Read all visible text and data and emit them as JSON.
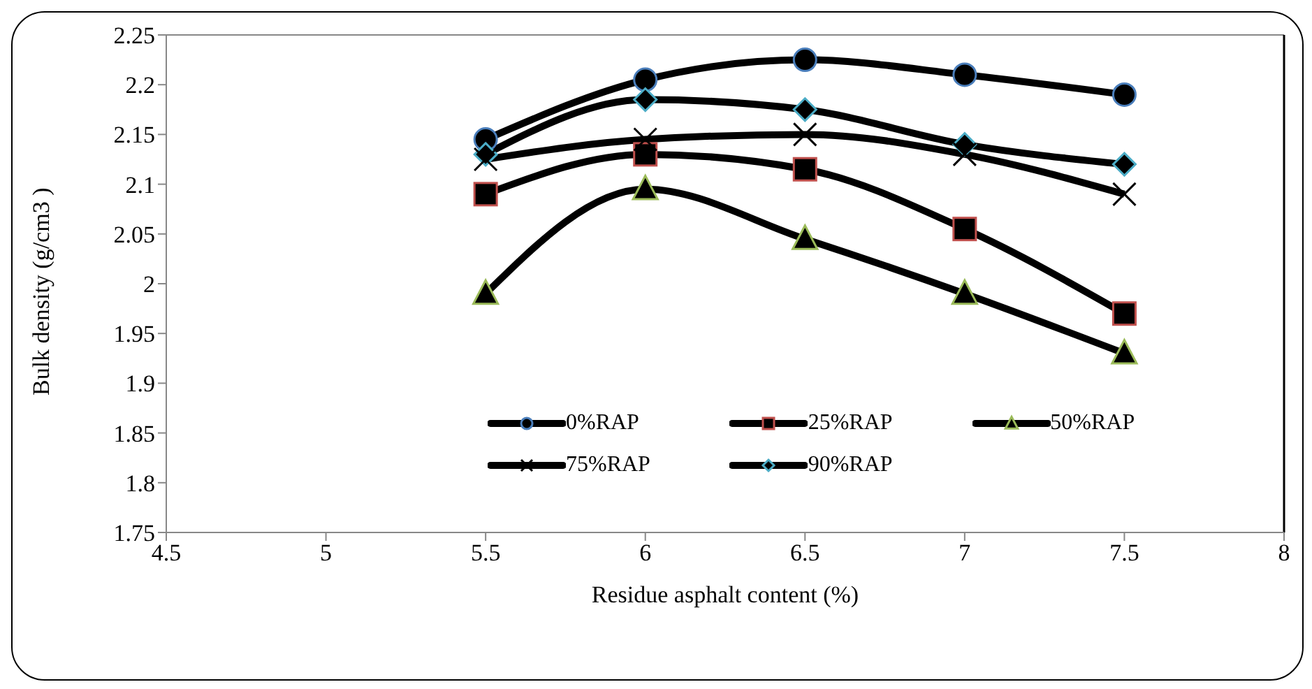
{
  "chart_data": {
    "type": "line",
    "xlabel": "Residue asphalt content (%)",
    "ylabel": "Bulk density (g/cm3 )",
    "x": [
      5.5,
      6,
      6.5,
      7,
      7.5
    ],
    "series": [
      {
        "name": "0%RAP",
        "color": "#000000",
        "marker": "circle",
        "values": [
          2.145,
          2.205,
          2.225,
          2.21,
          2.19
        ]
      },
      {
        "name": "25%RAP",
        "color": "#000000",
        "marker": "square",
        "values": [
          2.09,
          2.13,
          2.115,
          2.055,
          1.97
        ]
      },
      {
        "name": "50%RAP",
        "color": "#000000",
        "marker": "triangle",
        "values": [
          1.99,
          2.095,
          2.045,
          1.99,
          1.93
        ]
      },
      {
        "name": "75%RAP",
        "color": "#000000",
        "marker": "cross",
        "values": [
          2.125,
          2.145,
          2.15,
          2.13,
          2.09
        ]
      },
      {
        "name": "90%RAP",
        "color": "#000000",
        "marker": "diamond",
        "values": [
          2.13,
          2.185,
          2.175,
          2.14,
          2.12
        ]
      }
    ],
    "xlim": [
      4.5,
      8
    ],
    "xticks": [
      4.5,
      5,
      5.5,
      6,
      6.5,
      7,
      7.5,
      8
    ],
    "ylim": [
      1.75,
      2.25
    ],
    "yticks": [
      1.75,
      1.8,
      1.85,
      1.9,
      1.95,
      2,
      2.05,
      2.1,
      2.15,
      2.2,
      2.25
    ],
    "grid": false,
    "legend": "bottom",
    "line_style": "solid"
  }
}
